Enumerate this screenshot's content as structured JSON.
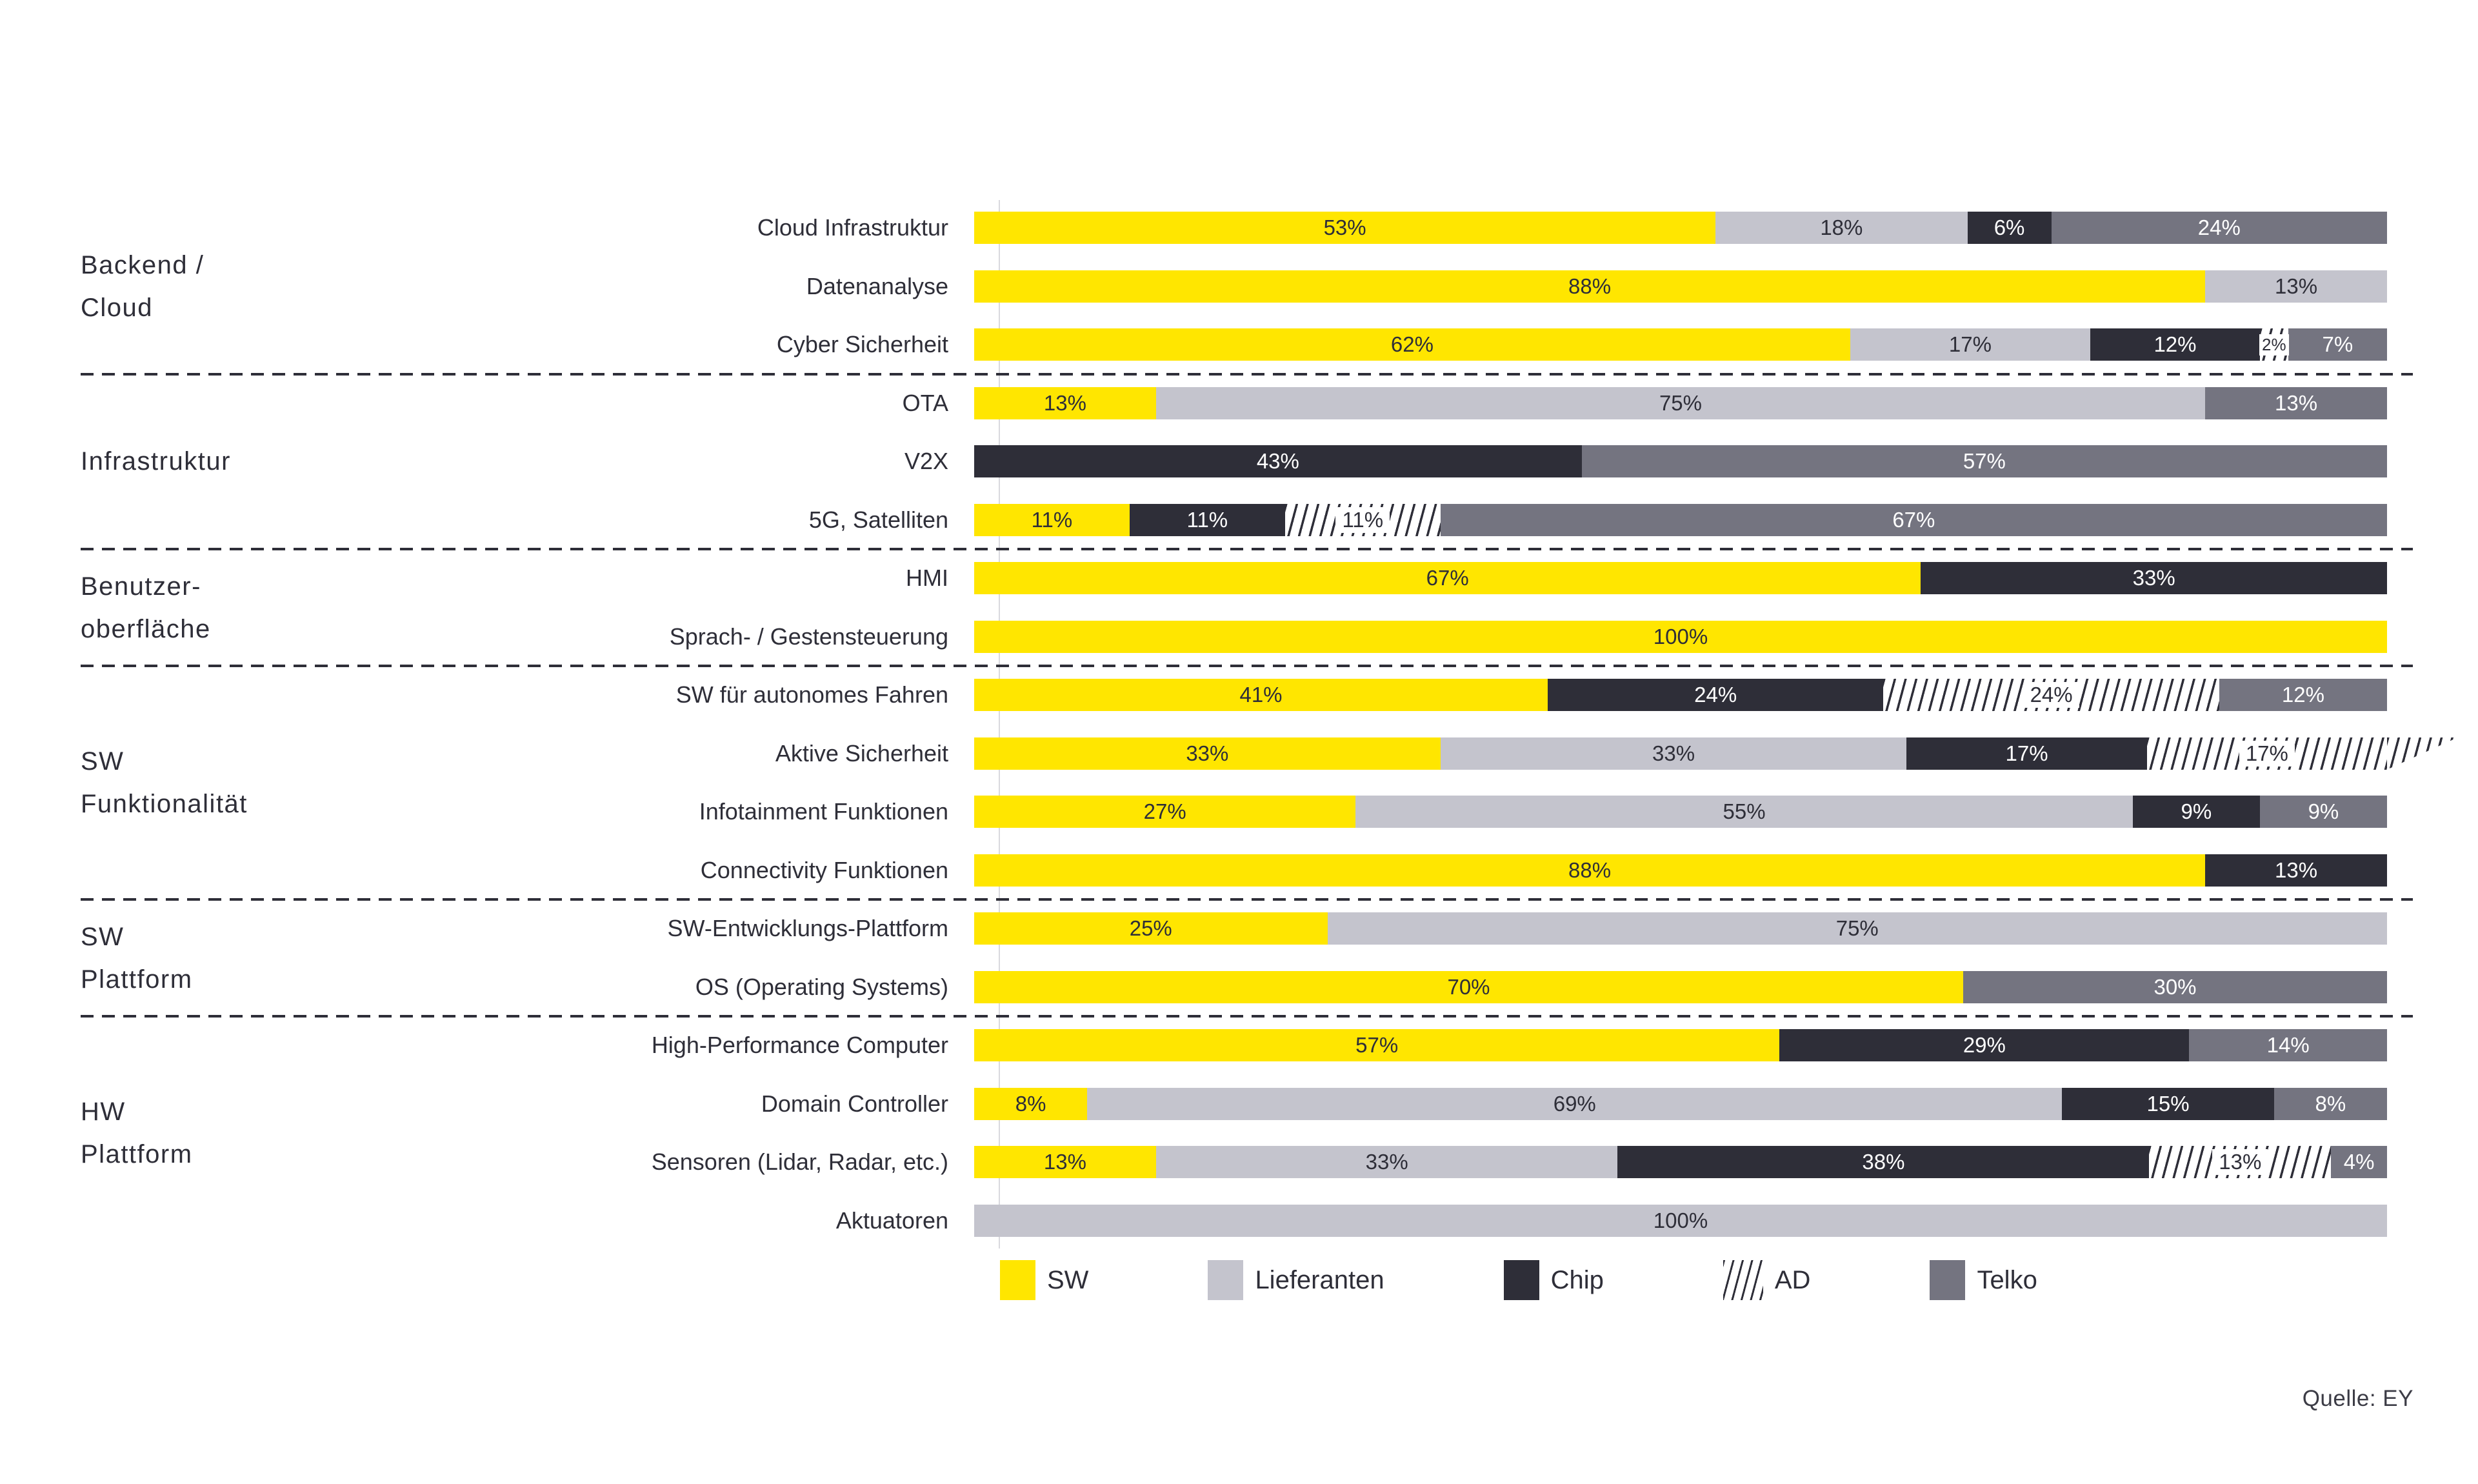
{
  "source": "Quelle: EY",
  "colors": {
    "sw": "#FFE600",
    "lieferanten": "#C4C4CD",
    "chip": "#2E2E38",
    "telko": "#747480",
    "ad_hatch_line": "#2E2E38",
    "text_dark": "#2E2E38",
    "text_light": "#FFFFFF"
  },
  "legend": [
    {
      "series": "sw",
      "label": "SW"
    },
    {
      "series": "lieferanten",
      "label": "Lieferanten"
    },
    {
      "series": "chip",
      "label": "Chip"
    },
    {
      "series": "ad",
      "label": "AD"
    },
    {
      "series": "telko",
      "label": "Telko"
    }
  ],
  "chart_data": {
    "type": "bar",
    "stacked": true,
    "orientation": "horizontal",
    "unit": "%",
    "series_names": [
      "SW",
      "Lieferanten",
      "Chip",
      "AD",
      "Telko"
    ],
    "xlim": [
      0,
      100
    ],
    "grid": false,
    "legend_position": "bottom",
    "groups": [
      {
        "label_lines": [
          "Backend /",
          "Cloud"
        ],
        "rows": [
          {
            "label": "Cloud Infrastruktur",
            "segments": [
              {
                "series": "sw",
                "value": 53,
                "label": "53%"
              },
              {
                "series": "lieferanten",
                "value": 18,
                "label": "18%"
              },
              {
                "series": "chip",
                "value": 6,
                "label": "6%"
              },
              {
                "series": "telko",
                "value": 24,
                "label": "24%"
              }
            ]
          },
          {
            "label": "Datenanalyse",
            "segments": [
              {
                "series": "sw",
                "value": 88,
                "label": "88%"
              },
              {
                "series": "lieferanten",
                "value": 13,
                "label": "13%"
              }
            ]
          },
          {
            "label": "Cyber Sicherheit",
            "segments": [
              {
                "series": "sw",
                "value": 62,
                "label": "62%"
              },
              {
                "series": "lieferanten",
                "value": 17,
                "label": "17%"
              },
              {
                "series": "chip",
                "value": 12,
                "label": "12%"
              },
              {
                "series": "ad",
                "value": 2,
                "label": "2%",
                "small": true
              },
              {
                "series": "telko",
                "value": 7,
                "label": "7%"
              }
            ]
          }
        ]
      },
      {
        "label_lines": [
          "Infrastruktur"
        ],
        "rows": [
          {
            "label": "OTA",
            "segments": [
              {
                "series": "sw",
                "value": 13,
                "label": "13%"
              },
              {
                "series": "lieferanten",
                "value": 75,
                "label": "75%"
              },
              {
                "series": "telko",
                "value": 13,
                "label": "13%"
              }
            ]
          },
          {
            "label": "V2X",
            "segments": [
              {
                "series": "chip",
                "value": 43,
                "label": "43%"
              },
              {
                "series": "telko",
                "value": 57,
                "label": "57%"
              }
            ]
          },
          {
            "label": "5G, Satelliten",
            "segments": [
              {
                "series": "sw",
                "value": 11,
                "label": "11%"
              },
              {
                "series": "chip",
                "value": 11,
                "label": "11%"
              },
              {
                "series": "ad",
                "value": 11,
                "label": "11%"
              },
              {
                "series": "telko",
                "value": 67,
                "label": "67%"
              }
            ]
          }
        ]
      },
      {
        "label_lines": [
          "Benutzer-",
          "oberfläche"
        ],
        "rows": [
          {
            "label": "HMI",
            "segments": [
              {
                "series": "sw",
                "value": 67,
                "label": "67%"
              },
              {
                "series": "chip",
                "value": 33,
                "label": "33%"
              }
            ]
          },
          {
            "label": "Sprach- / Gestensteuerung",
            "segments": [
              {
                "series": "sw",
                "value": 100,
                "label": "100%"
              }
            ]
          }
        ]
      },
      {
        "label_lines": [
          "SW",
          "Funktionalität"
        ],
        "rows": [
          {
            "label": "SW für autonomes Fahren",
            "segments": [
              {
                "series": "sw",
                "value": 41,
                "label": "41%"
              },
              {
                "series": "chip",
                "value": 24,
                "label": "24%"
              },
              {
                "series": "ad",
                "value": 24,
                "label": "24%"
              },
              {
                "series": "telko",
                "value": 12,
                "label": "12%"
              }
            ]
          },
          {
            "label": "Aktive Sicherheit",
            "segments": [
              {
                "series": "sw",
                "value": 33,
                "label": "33%"
              },
              {
                "series": "lieferanten",
                "value": 33,
                "label": "33%"
              },
              {
                "series": "chip",
                "value": 17,
                "label": "17%"
              },
              {
                "series": "ad",
                "value": 17,
                "label": "17%",
                "overflow": true
              }
            ]
          },
          {
            "label": "Infotainment Funktionen",
            "segments": [
              {
                "series": "sw",
                "value": 27,
                "label": "27%"
              },
              {
                "series": "lieferanten",
                "value": 55,
                "label": "55%"
              },
              {
                "series": "chip",
                "value": 9,
                "label": "9%"
              },
              {
                "series": "telko",
                "value": 9,
                "label": "9%"
              }
            ]
          },
          {
            "label": "Connectivity Funktionen",
            "segments": [
              {
                "series": "sw",
                "value": 88,
                "label": "88%"
              },
              {
                "series": "chip",
                "value": 13,
                "label": "13%"
              }
            ]
          }
        ]
      },
      {
        "label_lines": [
          "SW",
          "Plattform"
        ],
        "rows": [
          {
            "label": "SW-Entwicklungs-Plattform",
            "segments": [
              {
                "series": "sw",
                "value": 25,
                "label": "25%"
              },
              {
                "series": "lieferanten",
                "value": 75,
                "label": "75%"
              }
            ]
          },
          {
            "label": "OS (Operating Systems)",
            "segments": [
              {
                "series": "sw",
                "value": 70,
                "label": "70%"
              },
              {
                "series": "telko",
                "value": 30,
                "label": "30%"
              }
            ]
          }
        ]
      },
      {
        "label_lines": [
          "HW",
          "Plattform"
        ],
        "rows": [
          {
            "label": "High-Performance Computer",
            "segments": [
              {
                "series": "sw",
                "value": 57,
                "label": "57%"
              },
              {
                "series": "chip",
                "value": 29,
                "label": "29%"
              },
              {
                "series": "telko",
                "value": 14,
                "label": "14%"
              }
            ]
          },
          {
            "label": "Domain Controller",
            "segments": [
              {
                "series": "sw",
                "value": 8,
                "label": "8%"
              },
              {
                "series": "lieferanten",
                "value": 69,
                "label": "69%"
              },
              {
                "series": "chip",
                "value": 15,
                "label": "15%"
              },
              {
                "series": "telko",
                "value": 8,
                "label": "8%"
              }
            ]
          },
          {
            "label": "Sensoren (Lidar, Radar, etc.)",
            "segments": [
              {
                "series": "sw",
                "value": 13,
                "label": "13%"
              },
              {
                "series": "lieferanten",
                "value": 33,
                "label": "33%"
              },
              {
                "series": "chip",
                "value": 38,
                "label": "38%"
              },
              {
                "series": "ad",
                "value": 13,
                "label": "13%"
              },
              {
                "series": "telko",
                "value": 4,
                "label": "4%"
              }
            ]
          },
          {
            "label": "Aktuatoren",
            "segments": [
              {
                "series": "lieferanten",
                "value": 100,
                "label": "100%"
              }
            ]
          }
        ]
      }
    ]
  }
}
